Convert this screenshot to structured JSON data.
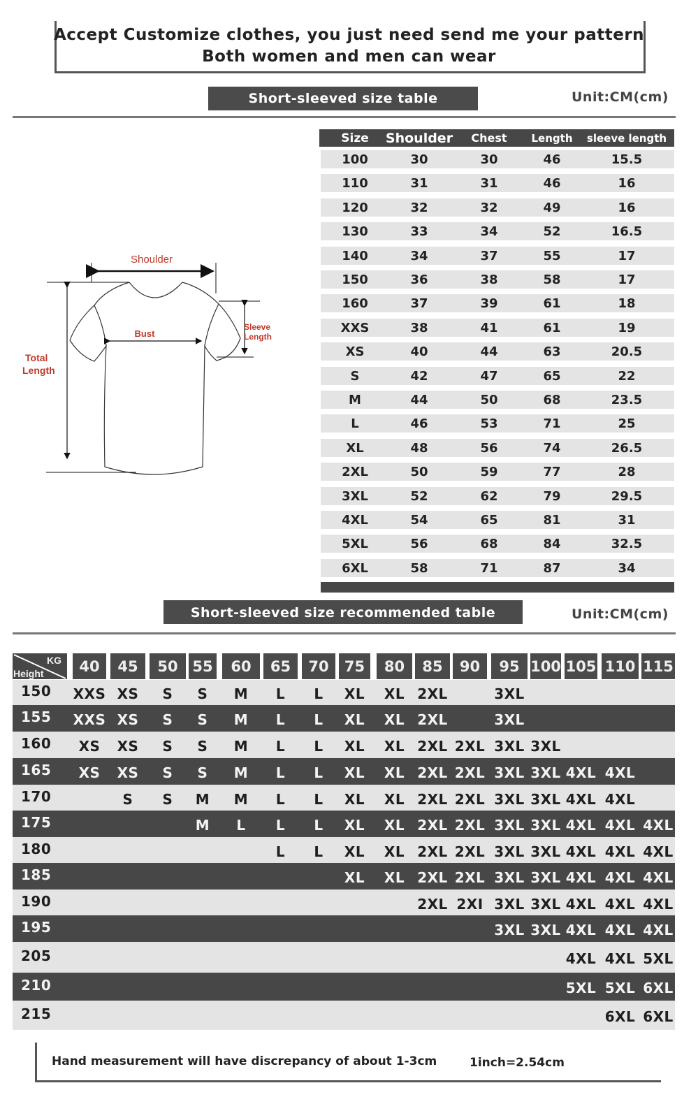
{
  "header": {
    "line1": "Accept Customize clothes, you just need send me your pattern",
    "line2": "Both women and men can wear"
  },
  "size_table": {
    "title": "Short-sleeved size  table",
    "unit": "Unit:CM(cm)",
    "columns": [
      "Size",
      "Shoulder",
      "Chest",
      "Length",
      "sleeve length"
    ],
    "rows": [
      [
        "100",
        "30",
        "30",
        "46",
        "15.5"
      ],
      [
        "110",
        "31",
        "31",
        "46",
        "16"
      ],
      [
        "120",
        "32",
        "32",
        "49",
        "16"
      ],
      [
        "130",
        "33",
        "34",
        "52",
        "16.5"
      ],
      [
        "140",
        "34",
        "37",
        "55",
        "17"
      ],
      [
        "150",
        "36",
        "38",
        "58",
        "17"
      ],
      [
        "160",
        "37",
        "39",
        "61",
        "18"
      ],
      [
        "XXS",
        "38",
        "41",
        "61",
        "19"
      ],
      [
        "XS",
        "40",
        "44",
        "63",
        "20.5"
      ],
      [
        "S",
        "42",
        "47",
        "65",
        "22"
      ],
      [
        "M",
        "44",
        "50",
        "68",
        "23.5"
      ],
      [
        "L",
        "46",
        "53",
        "71",
        "25"
      ],
      [
        "XL",
        "48",
        "56",
        "74",
        "26.5"
      ],
      [
        "2XL",
        "50",
        "59",
        "77",
        "28"
      ],
      [
        "3XL",
        "52",
        "62",
        "79",
        "29.5"
      ],
      [
        "4XL",
        "54",
        "65",
        "81",
        "31"
      ],
      [
        "5XL",
        "56",
        "68",
        "84",
        "32.5"
      ],
      [
        "6XL",
        "58",
        "71",
        "87",
        "34"
      ]
    ]
  },
  "diagram": {
    "shoulder": "Shoulder",
    "bust": "Bust",
    "sleeve_1": "Sleeve",
    "sleeve_2": "Length",
    "total_1": "Total",
    "total_2": "Length",
    "label_color": "#c0392b"
  },
  "rec_table": {
    "title": "Short-sleeved size recommended table",
    "unit": "Unit:CM(cm)",
    "corner_kg": "KG",
    "corner_height": "Height",
    "weights": [
      "40",
      "45",
      "50",
      "55",
      "60",
      "65",
      "70",
      "75",
      "80",
      "85",
      "90",
      "95",
      "100",
      "105",
      "110",
      "115"
    ],
    "rows": [
      {
        "height": "150",
        "cells": [
          "XXS",
          "XS",
          "S",
          "S",
          "M",
          "L",
          "L",
          "XL",
          "XL",
          "2XL",
          "",
          "3XL",
          "",
          "",
          "",
          ""
        ]
      },
      {
        "height": "155",
        "cells": [
          "XXS",
          "XS",
          "S",
          "S",
          "M",
          "L",
          "L",
          "XL",
          "XL",
          "2XL",
          "",
          "3XL",
          "",
          "",
          "",
          ""
        ]
      },
      {
        "height": "160",
        "cells": [
          "XS",
          "XS",
          "S",
          "S",
          "M",
          "L",
          "L",
          "XL",
          "XL",
          "2XL",
          "2XL",
          "3XL",
          "3XL",
          "",
          "",
          ""
        ]
      },
      {
        "height": "165",
        "cells": [
          "XS",
          "XS",
          "S",
          "S",
          "M",
          "L",
          "L",
          "XL",
          "XL",
          "2XL",
          "2XL",
          "3XL",
          "3XL",
          "4XL",
          "4XL",
          ""
        ]
      },
      {
        "height": "170",
        "cells": [
          "",
          "S",
          "S",
          "M",
          "M",
          "L",
          "L",
          "XL",
          "XL",
          "2XL",
          "2XL",
          "3XL",
          "3XL",
          "4XL",
          "4XL",
          ""
        ]
      },
      {
        "height": "175",
        "cells": [
          "",
          "",
          "",
          "M",
          "L",
          "L",
          "L",
          "XL",
          "XL",
          "2XL",
          "2XL",
          "3XL",
          "3XL",
          "4XL",
          "4XL",
          "4XL"
        ]
      },
      {
        "height": "180",
        "cells": [
          "",
          "",
          "",
          "",
          "",
          "L",
          "L",
          "XL",
          "XL",
          "2XL",
          "2XL",
          "3XL",
          "3XL",
          "4XL",
          "4XL",
          "4XL"
        ]
      },
      {
        "height": "185",
        "cells": [
          "",
          "",
          "",
          "",
          "",
          "",
          "",
          "XL",
          "XL",
          "2XL",
          "2XL",
          "3XL",
          "3XL",
          "4XL",
          "4XL",
          "4XL"
        ]
      },
      {
        "height": "190",
        "cells": [
          "",
          "",
          "",
          "",
          "",
          "",
          "",
          "",
          "",
          "2XL",
          "2XI",
          "3XL",
          "3XL",
          "4XL",
          "4XL",
          "4XL"
        ]
      },
      {
        "height": "195",
        "cells": [
          "",
          "",
          "",
          "",
          "",
          "",
          "",
          "",
          "",
          "",
          "",
          "3XL",
          "3XL",
          "4XL",
          "4XL",
          "4XL"
        ]
      },
      {
        "height": "205",
        "cells": [
          "",
          "",
          "",
          "",
          "",
          "",
          "",
          "",
          "",
          "",
          "",
          "",
          "",
          "4XL",
          "4XL",
          "5XL"
        ]
      },
      {
        "height": "210",
        "cells": [
          "",
          "",
          "",
          "",
          "",
          "",
          "",
          "",
          "",
          "",
          "",
          "",
          "",
          "5XL",
          "5XL",
          "6XL"
        ]
      },
      {
        "height": "215",
        "cells": [
          "",
          "",
          "",
          "",
          "",
          "",
          "",
          "",
          "",
          "",
          "",
          "",
          "",
          "",
          "6XL",
          "6XL"
        ]
      }
    ]
  },
  "footer": {
    "note": "Hand measurement will have discrepancy of about  1-3cm",
    "conversion": "1inch=2.54cm"
  },
  "colors": {
    "dark": "#474747",
    "light": "#e4e4e4",
    "label": "#c0392b"
  }
}
